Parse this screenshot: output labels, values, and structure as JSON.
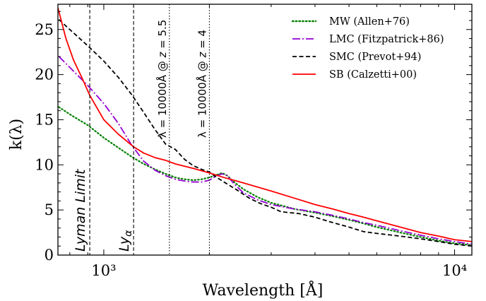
{
  "chart_data": {
    "type": "line",
    "xlabel": "Wavelength [Å]",
    "ylabel": "k(λ)",
    "xscale": "log",
    "xlim": [
      740,
      11200
    ],
    "ylim": [
      0,
      27.8
    ],
    "xtick_labels": [
      {
        "value": 1000,
        "label": "10³"
      },
      {
        "value": 10000,
        "label": "10⁴"
      }
    ],
    "ytick_labels": [
      {
        "value": 0,
        "label": "0"
      },
      {
        "value": 5,
        "label": "5"
      },
      {
        "value": 10,
        "label": "10"
      },
      {
        "value": 15,
        "label": "15"
      },
      {
        "value": 20,
        "label": "20"
      },
      {
        "value": 25,
        "label": "25"
      }
    ],
    "legend_position": "top-right",
    "series": [
      {
        "name": "MW (Allen+76)",
        "color": "#008000",
        "dash": "dotted",
        "points": [
          [
            745,
            16.4
          ],
          [
            800,
            15.6
          ],
          [
            900,
            14.4
          ],
          [
            1000,
            13.0
          ],
          [
            1100,
            11.9
          ],
          [
            1200,
            10.9
          ],
          [
            1300,
            10.1
          ],
          [
            1400,
            9.5
          ],
          [
            1500,
            9.0
          ],
          [
            1600,
            8.6
          ],
          [
            1700,
            8.4
          ],
          [
            1800,
            8.3
          ],
          [
            1900,
            8.4
          ],
          [
            2000,
            8.6
          ],
          [
            2100,
            8.9
          ],
          [
            2175,
            9.1
          ],
          [
            2250,
            8.8
          ],
          [
            2350,
            8.1
          ],
          [
            2500,
            7.3
          ],
          [
            2750,
            6.4
          ],
          [
            3000,
            5.8
          ],
          [
            3500,
            5.1
          ],
          [
            4000,
            4.7
          ],
          [
            4500,
            4.3
          ],
          [
            5000,
            3.9
          ],
          [
            5500,
            3.5
          ],
          [
            6000,
            3.1
          ],
          [
            7000,
            2.5
          ],
          [
            8000,
            2.0
          ],
          [
            9000,
            1.6
          ],
          [
            10000,
            1.3
          ],
          [
            11200,
            1.1
          ]
        ]
      },
      {
        "name": "LMC (Fitzpatrick+86)",
        "color": "#9400D3",
        "dash": "dashdot",
        "points": [
          [
            745,
            22.0
          ],
          [
            800,
            20.8
          ],
          [
            900,
            18.8
          ],
          [
            1000,
            16.8
          ],
          [
            1100,
            14.6
          ],
          [
            1200,
            12.2
          ],
          [
            1300,
            10.4
          ],
          [
            1400,
            9.4
          ],
          [
            1500,
            8.8
          ],
          [
            1600,
            8.4
          ],
          [
            1700,
            8.2
          ],
          [
            1800,
            8.1
          ],
          [
            1900,
            8.1
          ],
          [
            2000,
            8.3
          ],
          [
            2100,
            8.8
          ],
          [
            2175,
            9.0
          ],
          [
            2250,
            8.8
          ],
          [
            2350,
            7.9
          ],
          [
            2500,
            6.9
          ],
          [
            2750,
            6.1
          ],
          [
            3000,
            5.6
          ],
          [
            3500,
            5.1
          ],
          [
            4000,
            4.8
          ],
          [
            4500,
            4.4
          ],
          [
            5000,
            4.0
          ],
          [
            5500,
            3.6
          ],
          [
            6000,
            3.3
          ],
          [
            7000,
            2.7
          ],
          [
            8000,
            2.2
          ],
          [
            9000,
            1.8
          ],
          [
            10000,
            1.5
          ],
          [
            11200,
            1.2
          ]
        ]
      },
      {
        "name": "SMC (Prevot+94)",
        "color": "#000000",
        "dash": "dashed",
        "points": [
          [
            745,
            26.1
          ],
          [
            800,
            25.0
          ],
          [
            900,
            23.2
          ],
          [
            1000,
            21.5
          ],
          [
            1100,
            19.7
          ],
          [
            1200,
            17.8
          ],
          [
            1300,
            15.8
          ],
          [
            1400,
            13.9
          ],
          [
            1500,
            12.3
          ],
          [
            1600,
            11.7
          ],
          [
            1700,
            10.6
          ],
          [
            1800,
            9.9
          ],
          [
            1900,
            9.5
          ],
          [
            2000,
            9.2
          ],
          [
            2100,
            8.6
          ],
          [
            2200,
            8.1
          ],
          [
            2400,
            7.2
          ],
          [
            2600,
            6.3
          ],
          [
            2800,
            5.7
          ],
          [
            3000,
            5.3
          ],
          [
            3200,
            4.8
          ],
          [
            3600,
            4.6
          ],
          [
            4000,
            4.2
          ],
          [
            4400,
            3.7
          ],
          [
            5000,
            3.1
          ],
          [
            5500,
            2.6
          ],
          [
            6000,
            2.4
          ],
          [
            7000,
            2.1
          ],
          [
            8000,
            1.8
          ],
          [
            9000,
            1.5
          ],
          [
            10000,
            1.2
          ],
          [
            11200,
            1.0
          ]
        ]
      },
      {
        "name": "SB (Calzetti+00)",
        "color": "#ff0000",
        "dash": "solid",
        "points": [
          [
            740,
            27.4
          ],
          [
            780,
            24.0
          ],
          [
            820,
            21.6
          ],
          [
            870,
            19.5
          ],
          [
            912,
            17.7
          ],
          [
            1000,
            15.0
          ],
          [
            1100,
            13.4
          ],
          [
            1216,
            12.0
          ],
          [
            1300,
            11.3
          ],
          [
            1400,
            10.8
          ],
          [
            1500,
            10.5
          ],
          [
            1600,
            10.1
          ],
          [
            1800,
            9.6
          ],
          [
            2000,
            9.1
          ],
          [
            2200,
            8.6
          ],
          [
            2500,
            8.0
          ],
          [
            3000,
            7.1
          ],
          [
            3500,
            6.3
          ],
          [
            4000,
            5.6
          ],
          [
            4500,
            5.1
          ],
          [
            5000,
            4.6
          ],
          [
            5500,
            4.2
          ],
          [
            6000,
            3.8
          ],
          [
            7000,
            3.1
          ],
          [
            8000,
            2.5
          ],
          [
            9000,
            2.1
          ],
          [
            10000,
            1.7
          ],
          [
            11200,
            1.5
          ]
        ]
      }
    ],
    "vlines": [
      {
        "x": 912,
        "style": "dashed",
        "label": "Lyman Limit"
      },
      {
        "x": 1216,
        "style": "dashed",
        "label": "Ly",
        "label_sub": "α"
      },
      {
        "x": 1538,
        "style": "dotted",
        "label_math": "λ = 10000Å @ ",
        "label_var": "z",
        "label_tail": " = 5.5"
      },
      {
        "x": 2000,
        "style": "dotted",
        "label_math": "λ = 10000Å @ ",
        "label_var": "z",
        "label_tail": " = 4"
      }
    ]
  }
}
